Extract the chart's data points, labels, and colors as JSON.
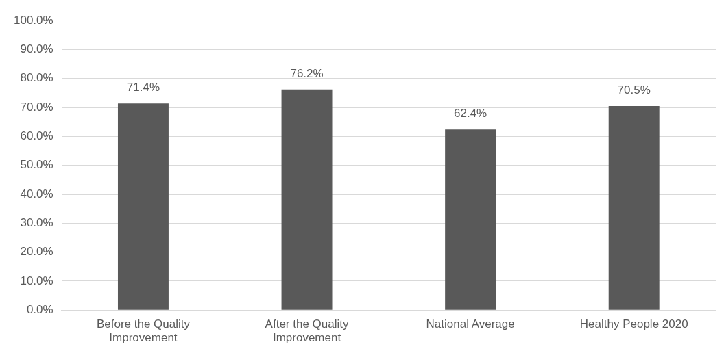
{
  "chart_data": {
    "type": "bar",
    "categories": [
      "Before the Quality Improvement",
      "After the Quality Improvement",
      "National Average",
      "Healthy People 2020"
    ],
    "values": [
      71.4,
      76.2,
      62.4,
      70.5
    ],
    "value_labels": [
      "71.4%",
      "76.2%",
      "62.4%",
      "70.5%"
    ],
    "color": "#595959",
    "ylim": [
      0,
      100
    ],
    "yticks": [
      {
        "value": 0,
        "label": "0.0%"
      },
      {
        "value": 10,
        "label": "10.0%"
      },
      {
        "value": 20,
        "label": "20.0%"
      },
      {
        "value": 30,
        "label": "30.0%"
      },
      {
        "value": 40,
        "label": "40.0%"
      },
      {
        "value": 50,
        "label": "50.0%"
      },
      {
        "value": 60,
        "label": "60.0%"
      },
      {
        "value": 70,
        "label": "70.0%"
      },
      {
        "value": 80,
        "label": "80.0%"
      },
      {
        "value": 90,
        "label": "90.0%"
      },
      {
        "value": 100,
        "label": "100.0%"
      }
    ],
    "grid": "y",
    "legend": false
  }
}
